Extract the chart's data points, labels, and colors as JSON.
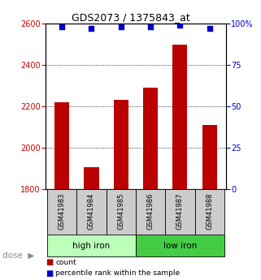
{
  "title": "GDS2073 / 1375843_at",
  "samples": [
    "GSM41983",
    "GSM41984",
    "GSM41985",
    "GSM41986",
    "GSM41987",
    "GSM41988"
  ],
  "counts": [
    2220,
    1905,
    2230,
    2290,
    2500,
    2110
  ],
  "percentiles": [
    98,
    97,
    98,
    98,
    99,
    97
  ],
  "ylim_left": [
    1800,
    2600
  ],
  "ylim_right": [
    0,
    100
  ],
  "yticks_left": [
    1800,
    2000,
    2200,
    2400,
    2600
  ],
  "yticks_right": [
    0,
    25,
    50,
    75,
    100
  ],
  "ytick_labels_right": [
    "0",
    "25",
    "50",
    "75",
    "100%"
  ],
  "groups": [
    {
      "label": "high iron",
      "color": "#bbffbb"
    },
    {
      "label": "low iron",
      "color": "#44cc44"
    }
  ],
  "bar_color": "#bb0000",
  "dot_color": "#0000cc",
  "bar_width": 0.5,
  "left_axis_color": "#cc0000",
  "right_axis_color": "#0000cc",
  "background_color": "#ffffff",
  "sample_box_color": "#cccccc",
  "legend_count_label": "count",
  "legend_pct_label": "percentile rank within the sample"
}
